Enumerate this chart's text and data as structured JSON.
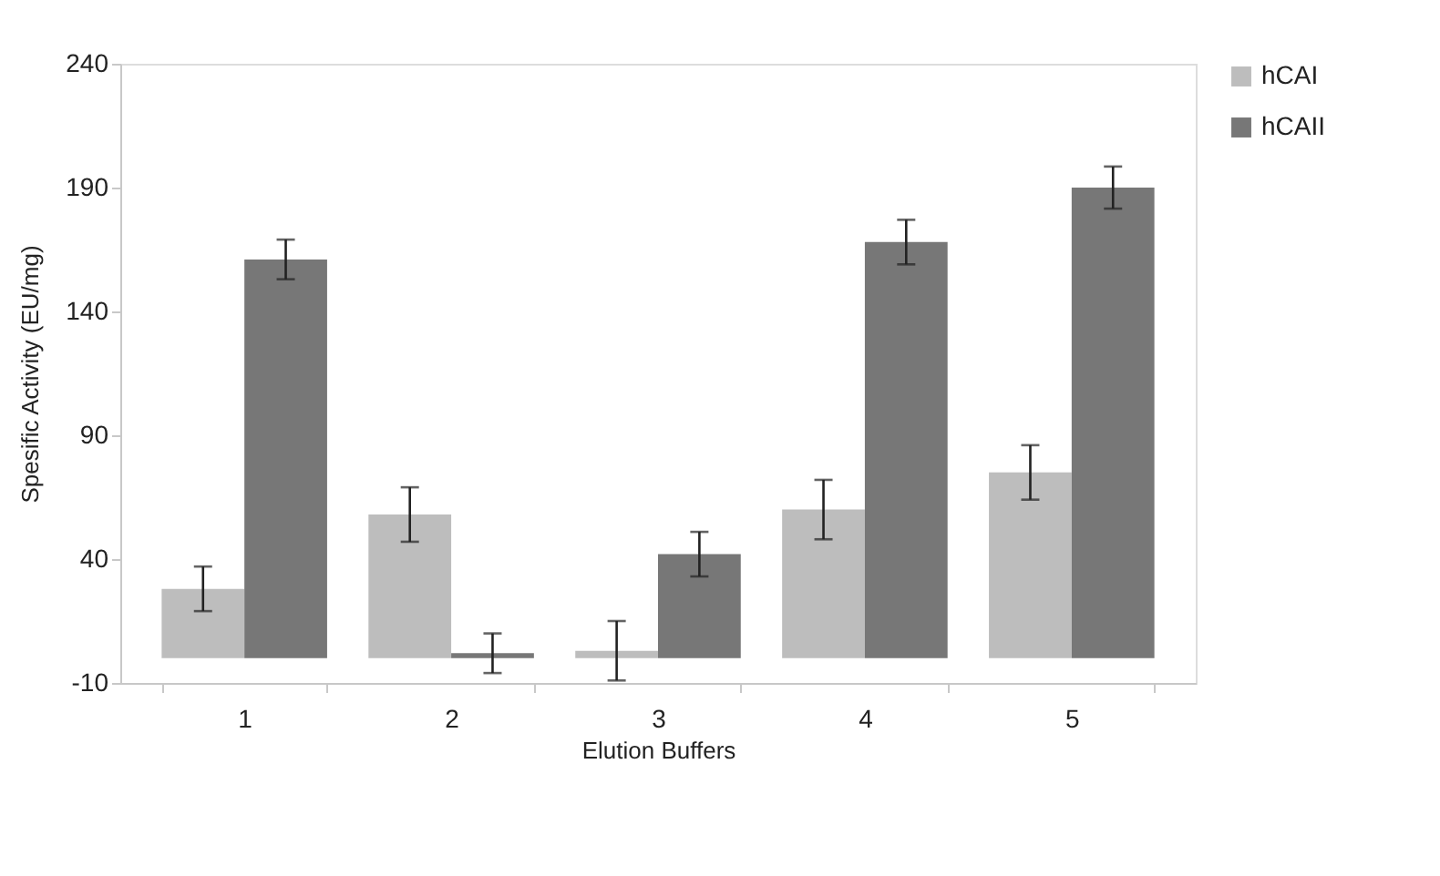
{
  "chart_data": {
    "type": "bar",
    "xlabel": "Elution Buffers",
    "ylabel": "Spesific Activity (EU/mg)",
    "categories": [
      "1",
      "2",
      "3",
      "4",
      "5"
    ],
    "series": [
      {
        "name": "hCAI",
        "color": "#bdbdbd",
        "values": [
          28,
          58,
          3,
          60,
          75
        ],
        "errors": [
          9,
          11,
          12,
          12,
          11
        ]
      },
      {
        "name": "hCAII",
        "color": "#777777",
        "values": [
          161,
          2,
          42,
          168,
          190
        ],
        "errors": [
          8,
          8,
          9,
          9,
          8.5
        ]
      }
    ],
    "ylim": [
      -10,
      240
    ],
    "yticks": [
      -10,
      40,
      90,
      140,
      190,
      240
    ],
    "grid": false,
    "legend": "right"
  }
}
